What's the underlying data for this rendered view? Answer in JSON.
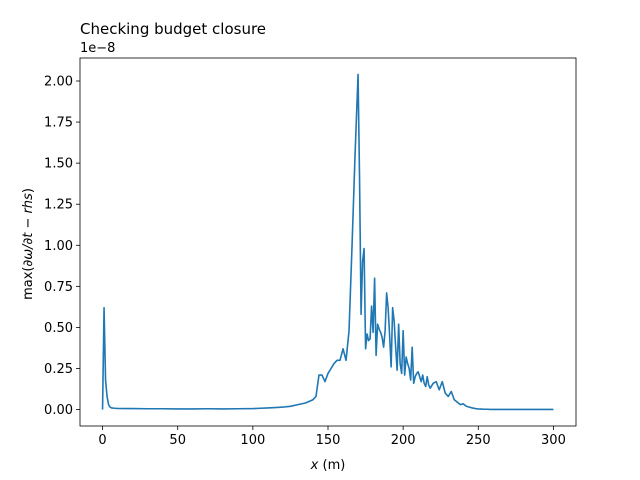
{
  "chart_data": {
    "type": "line",
    "title": "Checking budget closure",
    "xlabel": "x (m)",
    "ylabel": "max(∂ω/∂t − rhs)",
    "offset_text": "1e−8",
    "xlim": [
      -15,
      315
    ],
    "ylim": [
      -0.1,
      2.14
    ],
    "xticks": [
      0,
      50,
      100,
      150,
      200,
      250,
      300
    ],
    "yticks": [
      0.0,
      0.25,
      0.5,
      0.75,
      1.0,
      1.25,
      1.5,
      1.75,
      2.0
    ],
    "ytick_labels": [
      "0.00",
      "0.25",
      "0.50",
      "0.75",
      "1.00",
      "1.25",
      "1.50",
      "1.75",
      "2.00"
    ],
    "grid": false,
    "color": "#1f77b4",
    "series": [
      {
        "x": [
          0,
          1,
          2,
          3,
          4,
          5,
          6,
          8,
          10,
          15,
          20,
          30,
          40,
          50,
          60,
          70,
          80,
          90,
          100,
          105,
          110,
          115,
          120,
          125,
          130,
          135,
          140,
          142,
          144,
          146,
          148,
          150,
          152,
          154,
          156,
          158,
          160,
          162,
          164,
          166,
          168,
          170,
          171,
          172,
          173,
          174,
          175,
          176,
          177,
          178,
          179,
          180,
          181,
          182,
          183,
          184,
          185,
          186,
          187,
          188,
          189,
          190,
          191,
          192,
          193,
          194,
          195,
          196,
          197,
          198,
          199,
          200,
          201,
          202,
          203,
          204,
          205,
          206,
          207,
          208,
          209,
          210,
          211,
          212,
          213,
          214,
          215,
          216,
          217,
          218,
          220,
          222,
          224,
          226,
          228,
          230,
          232,
          234,
          236,
          238,
          240,
          242,
          244,
          246,
          248,
          250,
          252,
          254,
          256,
          258,
          260,
          262,
          265,
          270,
          280,
          290,
          300
        ],
        "values": [
          0.0,
          0.62,
          0.18,
          0.08,
          0.03,
          0.015,
          0.01,
          0.008,
          0.007,
          0.006,
          0.006,
          0.005,
          0.005,
          0.004,
          0.004,
          0.005,
          0.004,
          0.005,
          0.006,
          0.008,
          0.01,
          0.012,
          0.015,
          0.02,
          0.03,
          0.04,
          0.06,
          0.08,
          0.21,
          0.21,
          0.17,
          0.22,
          0.25,
          0.28,
          0.3,
          0.3,
          0.37,
          0.3,
          0.48,
          1.0,
          1.55,
          2.04,
          1.4,
          0.58,
          0.9,
          0.98,
          0.37,
          0.46,
          0.42,
          0.43,
          0.63,
          0.47,
          0.8,
          0.33,
          0.52,
          0.49,
          0.47,
          0.44,
          0.38,
          0.48,
          0.71,
          0.62,
          0.45,
          0.26,
          0.62,
          0.54,
          0.38,
          0.24,
          0.52,
          0.28,
          0.22,
          0.48,
          0.21,
          0.32,
          0.28,
          0.25,
          0.18,
          0.38,
          0.16,
          0.2,
          0.22,
          0.23,
          0.2,
          0.17,
          0.21,
          0.16,
          0.14,
          0.2,
          0.15,
          0.13,
          0.16,
          0.17,
          0.12,
          0.17,
          0.1,
          0.08,
          0.11,
          0.06,
          0.045,
          0.03,
          0.035,
          0.02,
          0.015,
          0.01,
          0.006,
          0.004,
          0.003,
          0.002,
          0.002,
          0.001,
          0.001,
          0.001,
          0.001,
          0.001,
          0.001,
          0.001,
          0.001
        ]
      }
    ]
  }
}
